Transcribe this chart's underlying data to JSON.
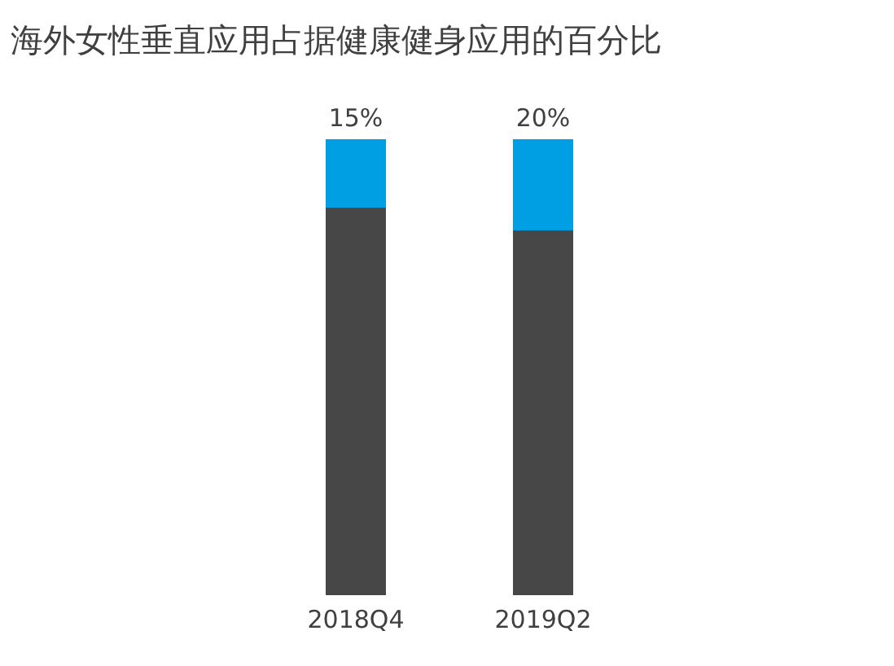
{
  "chart_data": {
    "type": "bar",
    "title": "海外女性垂直应用占据健康健身应用的百分比",
    "stacked": true,
    "categories": [
      "2018Q4",
      "2019Q2"
    ],
    "series": [
      {
        "color": "#474747",
        "values": [
          85,
          80
        ]
      },
      {
        "color": "#009fe3",
        "values": [
          15,
          20
        ],
        "value_labels": [
          "15%",
          "20%"
        ]
      }
    ]
  }
}
